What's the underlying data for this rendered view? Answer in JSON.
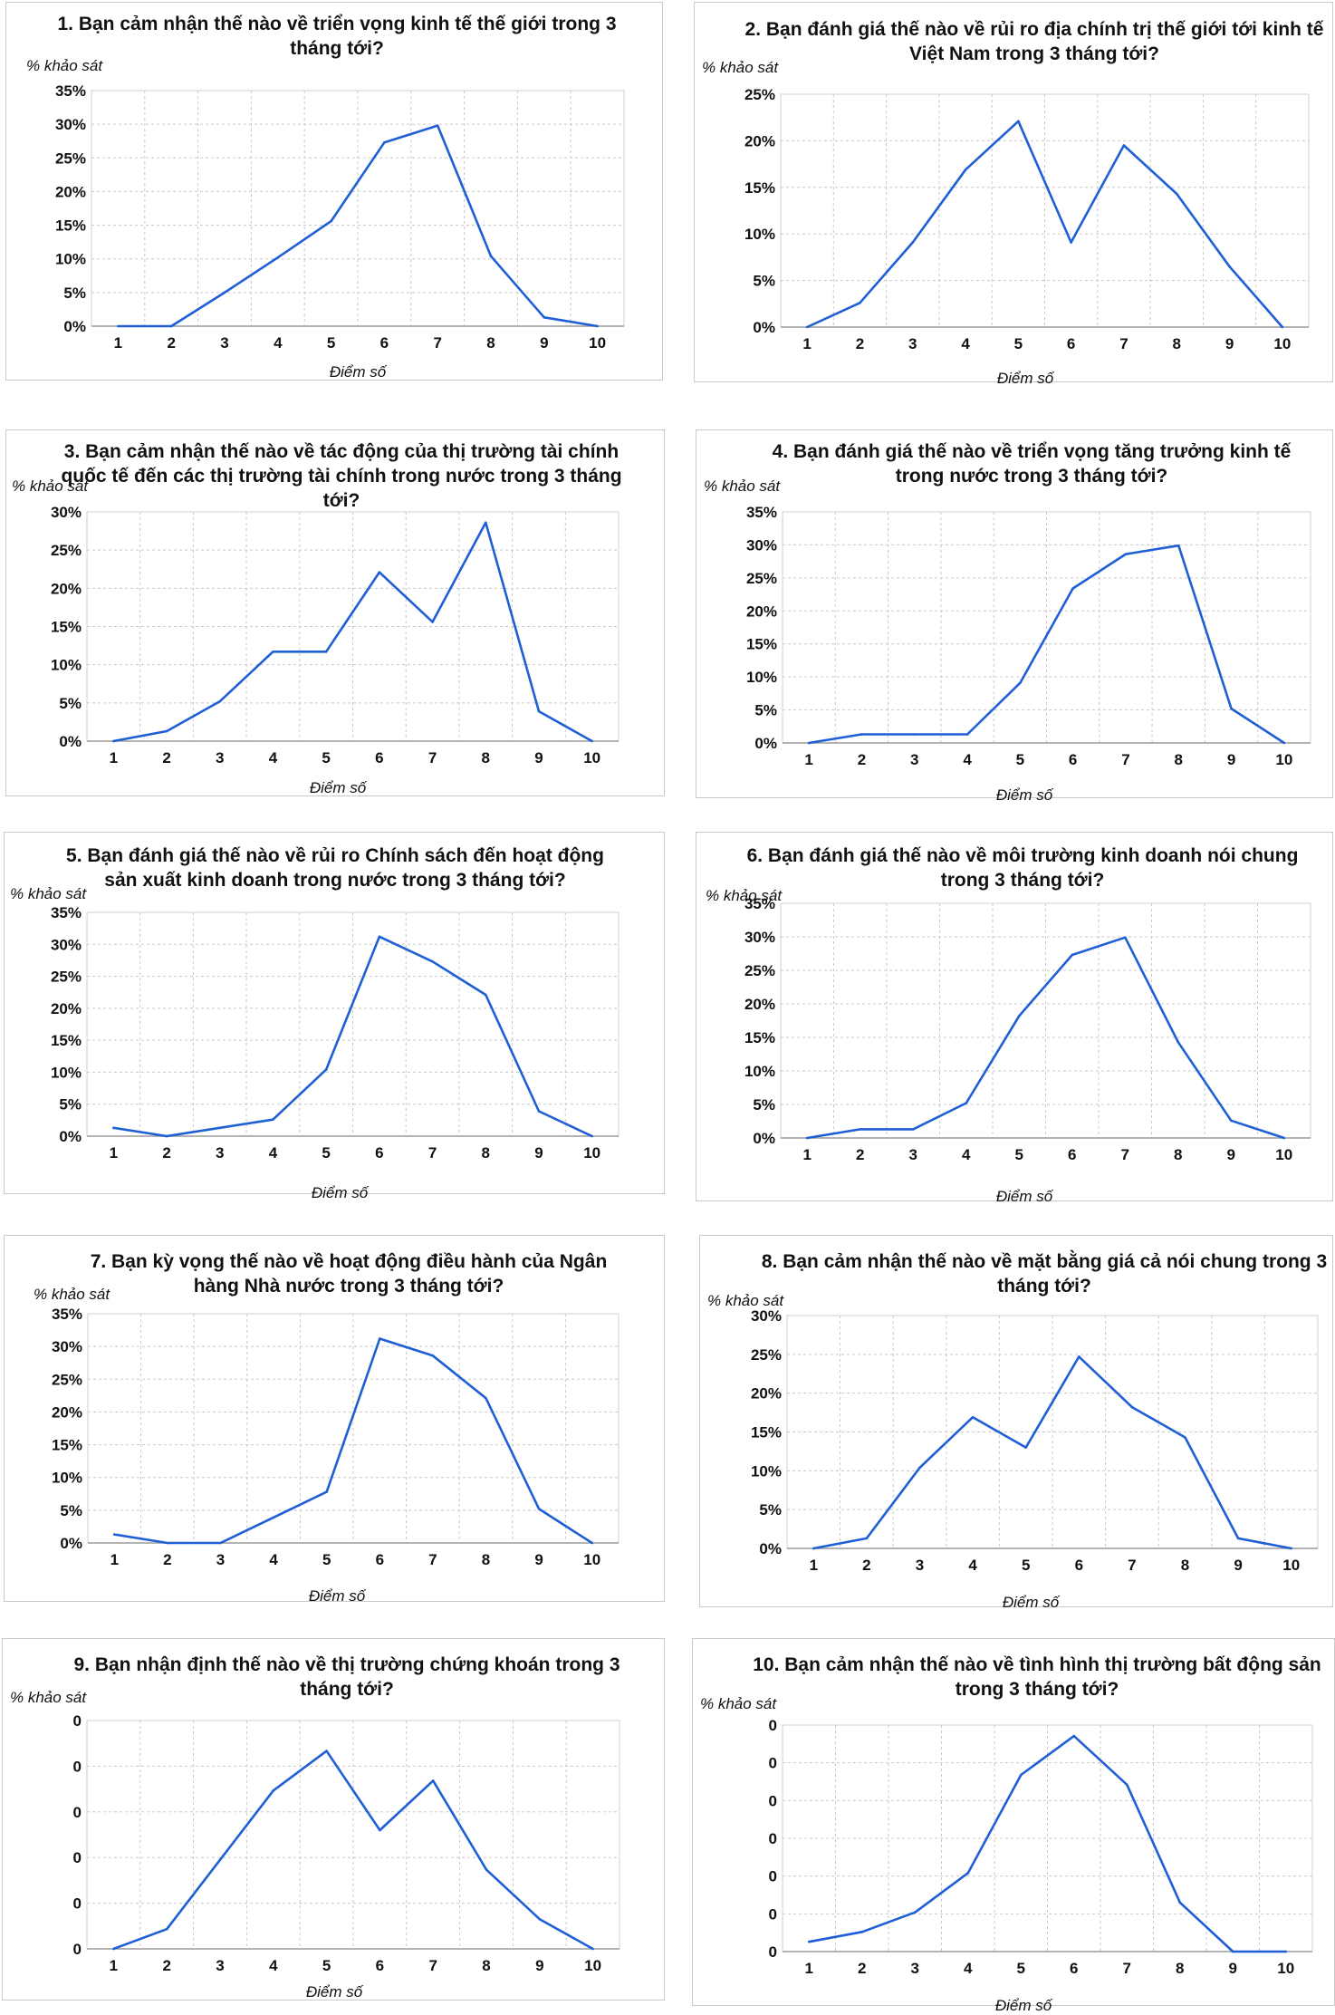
{
  "chart_data": [
    {
      "type": "line",
      "title": "1. Bạn cảm nhận thế nào về triển vọng kinh tế thế giới trong 3 tháng tới?",
      "ylabel": "% khảo sát",
      "xlabel": "Điểm số",
      "categories": [
        "1",
        "2",
        "3",
        "4",
        "5",
        "6",
        "7",
        "8",
        "9",
        "10"
      ],
      "values": [
        0,
        0,
        5,
        10.2,
        15.6,
        27.3,
        29.8,
        10.4,
        1.3,
        0
      ],
      "yticks": [
        "0%",
        "5%",
        "10%",
        "15%",
        "20%",
        "25%",
        "30%",
        "35%"
      ],
      "ylim": [
        0,
        35
      ],
      "grid": true
    },
    {
      "type": "line",
      "title": "2. Bạn đánh giá thế nào về rủi ro địa chính trị thế giới tới kinh tế Việt Nam trong 3 tháng tới?",
      "ylabel": "% khảo sát",
      "xlabel": "Điểm số",
      "categories": [
        "1",
        "2",
        "3",
        "4",
        "5",
        "6",
        "7",
        "8",
        "9",
        "10"
      ],
      "values": [
        0,
        2.6,
        9.1,
        16.9,
        22.1,
        9.1,
        19.5,
        14.3,
        6.5,
        0
      ],
      "yticks": [
        "0%",
        "5%",
        "10%",
        "15%",
        "20%",
        "25%"
      ],
      "ylim": [
        0,
        25
      ],
      "grid": true
    },
    {
      "type": "line",
      "title": "3. Bạn cảm nhận thế nào về tác động của thị trường tài chính quốc tế đến các thị trường tài chính trong nước trong 3 tháng tới?",
      "ylabel": "% khảo sát",
      "xlabel": "Điểm số",
      "categories": [
        "1",
        "2",
        "3",
        "4",
        "5",
        "6",
        "7",
        "8",
        "9",
        "10"
      ],
      "values": [
        0,
        1.3,
        5.2,
        11.7,
        11.7,
        22.1,
        15.6,
        28.6,
        3.9,
        0
      ],
      "yticks": [
        "0%",
        "5%",
        "10%",
        "15%",
        "20%",
        "25%",
        "30%"
      ],
      "ylim": [
        0,
        30
      ],
      "grid": true
    },
    {
      "type": "line",
      "title": "4. Bạn đánh giá thế nào về triển vọng tăng trưởng kinh tế trong nước trong 3 tháng tới?",
      "ylabel": "% khảo sát",
      "xlabel": "Điểm số",
      "categories": [
        "1",
        "2",
        "3",
        "4",
        "5",
        "6",
        "7",
        "8",
        "9",
        "10"
      ],
      "values": [
        0,
        1.3,
        1.3,
        1.3,
        9.1,
        23.4,
        28.6,
        29.9,
        5.2,
        0
      ],
      "yticks": [
        "0%",
        "5%",
        "10%",
        "15%",
        "20%",
        "25%",
        "30%",
        "35%"
      ],
      "ylim": [
        0,
        35
      ],
      "grid": true
    },
    {
      "type": "line",
      "title": "5. Bạn đánh giá thế nào về rủi ro Chính sách đến hoạt động sản xuất kinh doanh trong nước trong 3 tháng tới?",
      "ylabel": "% khảo sát",
      "xlabel": "Điểm số",
      "categories": [
        "1",
        "2",
        "3",
        "4",
        "5",
        "6",
        "7",
        "8",
        "9",
        "10"
      ],
      "values": [
        1.3,
        0,
        1.3,
        2.6,
        10.4,
        31.2,
        27.3,
        22.1,
        3.9,
        0
      ],
      "yticks": [
        "0%",
        "5%",
        "10%",
        "15%",
        "20%",
        "25%",
        "30%",
        "35%"
      ],
      "ylim": [
        0,
        35
      ],
      "grid": true
    },
    {
      "type": "line",
      "title": "6. Bạn đánh giá thế nào về môi trường kinh doanh nói chung trong 3 tháng tới?",
      "ylabel": "% khảo sát",
      "xlabel": "Điểm số",
      "categories": [
        "1",
        "2",
        "3",
        "4",
        "5",
        "6",
        "7",
        "8",
        "9",
        "10"
      ],
      "values": [
        0,
        1.3,
        1.3,
        5.2,
        18.2,
        27.3,
        29.9,
        14.3,
        2.6,
        0
      ],
      "yticks": [
        "0%",
        "5%",
        "10%",
        "15%",
        "20%",
        "25%",
        "30%",
        "35%"
      ],
      "ylim": [
        0,
        35
      ],
      "grid": true
    },
    {
      "type": "line",
      "title": "7. Bạn kỳ vọng thế nào về hoạt động điều hành của Ngân hàng Nhà nước trong 3 tháng tới?",
      "ylabel": "% khảo sát",
      "xlabel": "Điểm số",
      "categories": [
        "1",
        "2",
        "3",
        "4",
        "5",
        "6",
        "7",
        "8",
        "9",
        "10"
      ],
      "values": [
        1.3,
        0,
        0,
        3.9,
        7.8,
        31.2,
        28.6,
        22.1,
        5.2,
        0
      ],
      "yticks": [
        "0%",
        "5%",
        "10%",
        "15%",
        "20%",
        "25%",
        "30%",
        "35%"
      ],
      "ylim": [
        0,
        35
      ],
      "grid": true
    },
    {
      "type": "line",
      "title": "8. Bạn cảm nhận thế nào về mặt bằng giá cả nói chung trong 3 tháng tới?",
      "ylabel": "% khảo sát",
      "xlabel": "Điểm số",
      "categories": [
        "1",
        "2",
        "3",
        "4",
        "5",
        "6",
        "7",
        "8",
        "9",
        "10"
      ],
      "values": [
        0,
        1.3,
        10.4,
        16.9,
        13,
        24.7,
        18.2,
        14.3,
        1.3,
        0
      ],
      "yticks": [
        "0%",
        "5%",
        "10%",
        "15%",
        "20%",
        "25%",
        "30%"
      ],
      "ylim": [
        0,
        30
      ],
      "grid": true
    },
    {
      "type": "line",
      "title": "9. Bạn nhận định thế nào về thị trường chứng khoán trong 3 tháng tới?",
      "ylabel": "% khảo sát",
      "xlabel": "Điểm số",
      "categories": [
        "1",
        "2",
        "3",
        "4",
        "5",
        "6",
        "7",
        "8",
        "9",
        "10"
      ],
      "values": [
        0,
        2.6,
        11.7,
        20.8,
        26,
        15.6,
        22.1,
        10.4,
        3.9,
        0
      ],
      "yticks": [
        "0",
        "0",
        "0",
        "0",
        "0",
        "0"
      ],
      "ylim": [
        0,
        30
      ],
      "grid": true
    },
    {
      "type": "line",
      "title": "10. Bạn cảm nhận thế nào về tình hình thị trường bất động sản trong 3 tháng tới?",
      "ylabel": "% khảo sát",
      "xlabel": "Điểm số",
      "categories": [
        "1",
        "2",
        "3",
        "4",
        "5",
        "6",
        "7",
        "8",
        "9",
        "10"
      ],
      "values": [
        2.6,
        5.2,
        10.4,
        20.8,
        46.8,
        57.1,
        44.2,
        13,
        0,
        0
      ],
      "yticks": [
        "0",
        "0",
        "0",
        "0",
        "0",
        "0",
        "0"
      ],
      "ylim": [
        0,
        60
      ],
      "grid": true
    }
  ]
}
